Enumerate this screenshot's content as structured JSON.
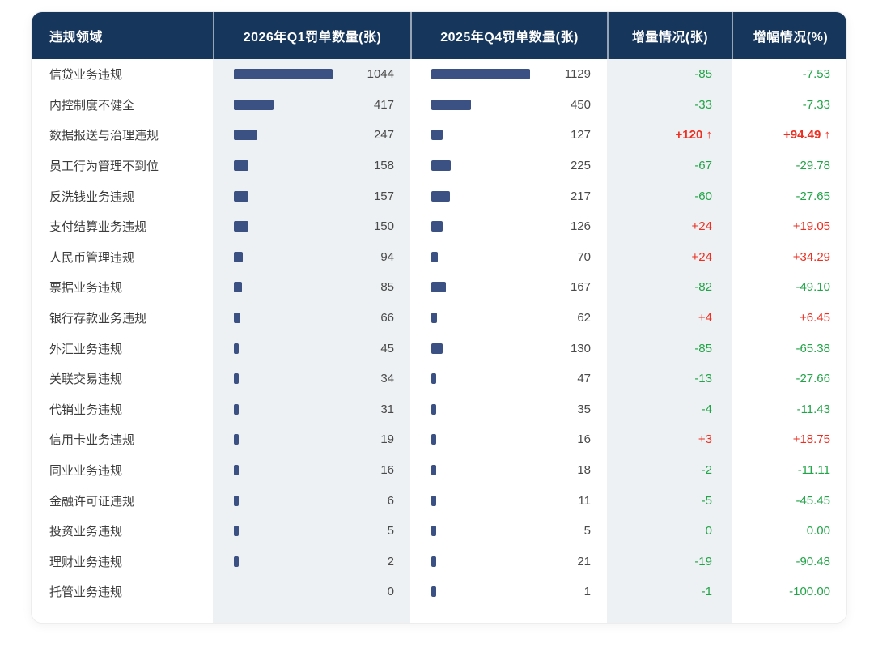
{
  "colors": {
    "header_bg": "#17365c",
    "bar": "#3b5183",
    "shade_column_bg": "#edf1f3",
    "increase_red": "#ee2e20",
    "decrease_green": "#21a447",
    "card_bg": "#ffffff"
  },
  "table": {
    "headers": [
      "违规领域",
      "2026年Q1罚单数量(张)",
      "2025年Q4罚单数量(张)",
      "增量情况(张)",
      "增幅情况(%)"
    ],
    "rows": [
      {
        "label": "信贷业务违规",
        "q1": 1044,
        "q4": 1129,
        "delta": "-85",
        "pct": "-7.53",
        "emphasis": false
      },
      {
        "label": "内控制度不健全",
        "q1": 417,
        "q4": 450,
        "delta": "-33",
        "pct": "-7.33",
        "emphasis": false
      },
      {
        "label": "数据报送与治理违规",
        "q1": 247,
        "q4": 127,
        "delta": "+120 ↑",
        "pct": "+94.49 ↑",
        "emphasis": true
      },
      {
        "label": "员工行为管理不到位",
        "q1": 158,
        "q4": 225,
        "delta": "-67",
        "pct": "-29.78",
        "emphasis": false
      },
      {
        "label": "反洗钱业务违规",
        "q1": 157,
        "q4": 217,
        "delta": "-60",
        "pct": "-27.65",
        "emphasis": false
      },
      {
        "label": "支付结算业务违规",
        "q1": 150,
        "q4": 126,
        "delta": "+24",
        "pct": "+19.05",
        "emphasis": false
      },
      {
        "label": "人民币管理违规",
        "q1": 94,
        "q4": 70,
        "delta": "+24",
        "pct": "+34.29",
        "emphasis": false
      },
      {
        "label": "票据业务违规",
        "q1": 85,
        "q4": 167,
        "delta": "-82",
        "pct": "-49.10",
        "emphasis": false
      },
      {
        "label": "银行存款业务违规",
        "q1": 66,
        "q4": 62,
        "delta": "+4",
        "pct": "+6.45",
        "emphasis": false
      },
      {
        "label": "外汇业务违规",
        "q1": 45,
        "q4": 130,
        "delta": "-85",
        "pct": "-65.38",
        "emphasis": false
      },
      {
        "label": "关联交易违规",
        "q1": 34,
        "q4": 47,
        "delta": "-13",
        "pct": "-27.66",
        "emphasis": false
      },
      {
        "label": "代销业务违规",
        "q1": 31,
        "q4": 35,
        "delta": "-4",
        "pct": "-11.43",
        "emphasis": false
      },
      {
        "label": "信用卡业务违规",
        "q1": 19,
        "q4": 16,
        "delta": "+3",
        "pct": "+18.75",
        "emphasis": false
      },
      {
        "label": "同业业务违规",
        "q1": 16,
        "q4": 18,
        "delta": "-2",
        "pct": "-11.11",
        "emphasis": false
      },
      {
        "label": "金融许可证违规",
        "q1": 6,
        "q4": 11,
        "delta": "-5",
        "pct": "-45.45",
        "emphasis": false
      },
      {
        "label": "投资业务违规",
        "q1": 5,
        "q4": 5,
        "delta": "0",
        "pct": "0.00",
        "emphasis": false
      },
      {
        "label": "理财业务违规",
        "q1": 2,
        "q4": 21,
        "delta": "-19",
        "pct": "-90.48",
        "emphasis": false
      },
      {
        "label": "托管业务违规",
        "q1": 0,
        "q4": 1,
        "delta": "-1",
        "pct": "-100.00",
        "emphasis": false
      }
    ]
  },
  "chart_data": {
    "type": "table",
    "title": "",
    "columns": [
      "违规领域",
      "2026年Q1罚单数量(张)",
      "2025年Q4罚单数量(张)",
      "增量情况(张)",
      "增幅情况(%)"
    ],
    "categories": [
      "信贷业务违规",
      "内控制度不健全",
      "数据报送与治理违规",
      "员工行为管理不到位",
      "反洗钱业务违规",
      "支付结算业务违规",
      "人民币管理违规",
      "票据业务违规",
      "银行存款业务违规",
      "外汇业务违规",
      "关联交易违规",
      "代销业务违规",
      "信用卡业务违规",
      "同业业务违规",
      "金融许可证违规",
      "投资业务违规",
      "理财业务违规",
      "托管业务违规"
    ],
    "series": [
      {
        "name": "2026年Q1罚单数量(张)",
        "values": [
          1044,
          417,
          247,
          158,
          157,
          150,
          94,
          85,
          66,
          45,
          34,
          31,
          19,
          16,
          6,
          5,
          2,
          0
        ]
      },
      {
        "name": "2025年Q4罚单数量(张)",
        "values": [
          1129,
          450,
          127,
          225,
          217,
          126,
          70,
          167,
          62,
          130,
          47,
          35,
          16,
          18,
          11,
          5,
          21,
          1
        ]
      },
      {
        "name": "增量情况(张)",
        "values": [
          -85,
          -33,
          120,
          -67,
          -60,
          24,
          24,
          -82,
          4,
          -85,
          -13,
          -4,
          3,
          -2,
          -5,
          0,
          -19,
          -1
        ]
      },
      {
        "name": "增幅情况(%)",
        "values": [
          -7.53,
          -7.33,
          94.49,
          -29.78,
          -27.65,
          19.05,
          34.29,
          -49.1,
          6.45,
          -65.38,
          -27.66,
          -11.43,
          18.75,
          -11.11,
          -45.45,
          0.0,
          -90.48,
          -100.0
        ]
      }
    ],
    "layout": {
      "bars_inline": true,
      "bar_color": "#3b5183",
      "increase_color": "#ee2e20",
      "decrease_color": "#21a447"
    }
  }
}
